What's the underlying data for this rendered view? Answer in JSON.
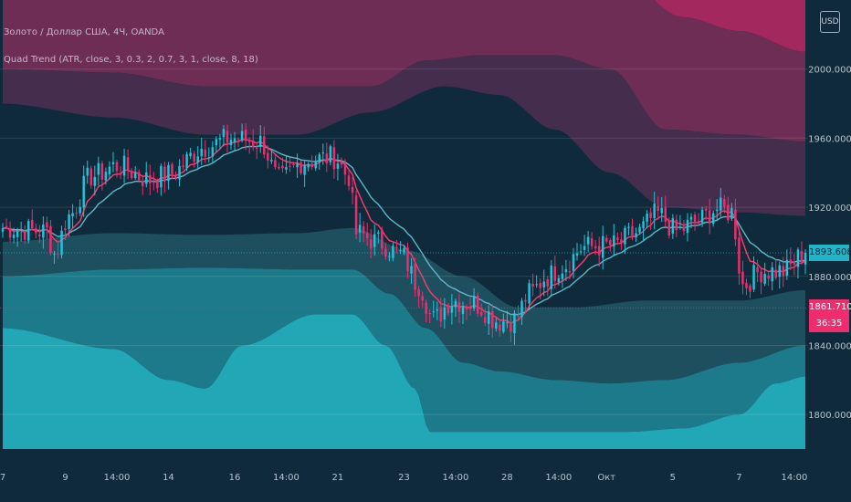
{
  "legend": {
    "symbol_line": "Золото / Доллар США, 4Ч, OANDA",
    "indicator_line": "Quad Trend (ATR, close, 3, 0.3, 2, 0.7, 3, 1, close, 8, 18)"
  },
  "currency_badge": "USD",
  "price_tags": {
    "current": {
      "label": "1893.608",
      "bg": "#1fb4c8",
      "fg": "#0f2a3a"
    },
    "marker": {
      "label": "1861.710",
      "bg": "#ef2d6e",
      "fg": "#ffffff"
    },
    "countdown": {
      "label": "36:35",
      "bg": "#ef2d6e",
      "fg": "#ffffff"
    }
  },
  "colors": {
    "background": "#0f2a3a",
    "bull": "#1fc4d8",
    "bear": "#ef2d6e",
    "upper_band_outer": "#a3285e",
    "upper_band_mid": "#6e2d55",
    "upper_band_inner": "#452d4e",
    "lower_band_inner": "#1e4f5f",
    "lower_band_mid": "#1d7a8a",
    "lower_band_outer": "#21a7b6",
    "ema_fast": "#ff3b6b",
    "ema_slow": "#5fb8c8"
  },
  "chart_data": {
    "type": "candlestick",
    "title": "Золото / Доллар США, 4Ч, OANDA",
    "y_axis": {
      "ticks": [
        1800.0,
        1840.0,
        1880.0,
        1920.0,
        1960.0,
        2000.0
      ],
      "tick_labels": [
        "1800.000",
        "1840.000",
        "1880.000",
        "1920.000",
        "1960.000",
        "2000.000"
      ],
      "ylim": [
        1780,
        2040
      ],
      "position": "right"
    },
    "x_axis": {
      "tick_labels": [
        "7",
        "9",
        "14:00",
        "14",
        "16",
        "14:00",
        "21",
        "23",
        "14:00",
        "28",
        "14:00",
        "Окт",
        "5",
        "7",
        "14:00"
      ],
      "tick_index": [
        0,
        17,
        31,
        45,
        63,
        77,
        91,
        109,
        123,
        137,
        151,
        164,
        182,
        200,
        215
      ]
    },
    "grid": true,
    "current_price": 1893.608,
    "marked_price": 1861.71,
    "countdown": "36:35",
    "series": {
      "candles_anchor_closes": [
        [
          0,
          1908
        ],
        [
          12,
          1906
        ],
        [
          14,
          1893
        ],
        [
          18,
          1915
        ],
        [
          24,
          1938
        ],
        [
          31,
          1944
        ],
        [
          40,
          1936
        ],
        [
          45,
          1939
        ],
        [
          55,
          1955
        ],
        [
          62,
          1960
        ],
        [
          70,
          1958
        ],
        [
          75,
          1936
        ],
        [
          82,
          1947
        ],
        [
          90,
          1949
        ],
        [
          94,
          1938
        ],
        [
          96,
          1905
        ],
        [
          102,
          1900
        ],
        [
          108,
          1893
        ],
        [
          113,
          1875
        ],
        [
          117,
          1855
        ],
        [
          122,
          1866
        ],
        [
          128,
          1864
        ],
        [
          135,
          1854
        ],
        [
          139,
          1855
        ],
        [
          143,
          1870
        ],
        [
          148,
          1880
        ],
        [
          152,
          1886
        ],
        [
          158,
          1897
        ],
        [
          166,
          1898
        ],
        [
          172,
          1905
        ],
        [
          178,
          1916
        ],
        [
          183,
          1906
        ],
        [
          188,
          1911
        ],
        [
          194,
          1919
        ],
        [
          198,
          1917
        ],
        [
          201,
          1875
        ],
        [
          206,
          1883
        ],
        [
          212,
          1883
        ],
        [
          218,
          1893.608
        ]
      ],
      "upper_band_outer_anchors": [
        [
          0,
          2062
        ],
        [
          55,
          2068
        ],
        [
          60,
          2045
        ],
        [
          95,
          2045
        ],
        [
          105,
          2060
        ],
        [
          140,
          2060
        ],
        [
          150,
          2072
        ],
        [
          165,
          2058
        ],
        [
          185,
          2030
        ],
        [
          200,
          2022
        ],
        [
          218,
          2010
        ]
      ],
      "upper_band_mid_anchors": [
        [
          0,
          2000
        ],
        [
          30,
          1998
        ],
        [
          55,
          1990
        ],
        [
          80,
          1990
        ],
        [
          100,
          1990
        ],
        [
          115,
          2005
        ],
        [
          130,
          2008
        ],
        [
          150,
          2008
        ],
        [
          165,
          2000
        ],
        [
          180,
          1965
        ],
        [
          200,
          1962
        ],
        [
          218,
          1958
        ]
      ],
      "upper_band_inner_anchors": [
        [
          0,
          1980
        ],
        [
          30,
          1972
        ],
        [
          55,
          1962
        ],
        [
          80,
          1962
        ],
        [
          100,
          1975
        ],
        [
          120,
          1990
        ],
        [
          135,
          1985
        ],
        [
          150,
          1965
        ],
        [
          165,
          1940
        ],
        [
          180,
          1920
        ],
        [
          200,
          1917
        ],
        [
          218,
          1915
        ]
      ],
      "lower_band_inner_anchors": [
        [
          0,
          1900
        ],
        [
          30,
          1905
        ],
        [
          55,
          1904
        ],
        [
          80,
          1905
        ],
        [
          95,
          1908
        ],
        [
          110,
          1895
        ],
        [
          125,
          1880
        ],
        [
          140,
          1862
        ],
        [
          155,
          1862
        ],
        [
          175,
          1866
        ],
        [
          200,
          1866
        ],
        [
          218,
          1872
        ]
      ],
      "lower_band_mid_anchors": [
        [
          0,
          1880
        ],
        [
          30,
          1884
        ],
        [
          55,
          1885
        ],
        [
          80,
          1884
        ],
        [
          95,
          1884
        ],
        [
          105,
          1870
        ],
        [
          115,
          1850
        ],
        [
          125,
          1830
        ],
        [
          135,
          1825
        ],
        [
          150,
          1820
        ],
        [
          165,
          1818
        ],
        [
          180,
          1820
        ],
        [
          200,
          1830
        ],
        [
          218,
          1840
        ]
      ],
      "lower_band_outer_anchors": [
        [
          0,
          1850
        ],
        [
          30,
          1838
        ],
        [
          45,
          1820
        ],
        [
          55,
          1815
        ],
        [
          65,
          1840
        ],
        [
          85,
          1858
        ],
        [
          95,
          1858
        ],
        [
          104,
          1840
        ],
        [
          112,
          1815
        ],
        [
          116,
          1790
        ],
        [
          170,
          1790
        ],
        [
          185,
          1792
        ],
        [
          200,
          1800
        ],
        [
          210,
          1818
        ],
        [
          218,
          1822
        ]
      ]
    }
  }
}
